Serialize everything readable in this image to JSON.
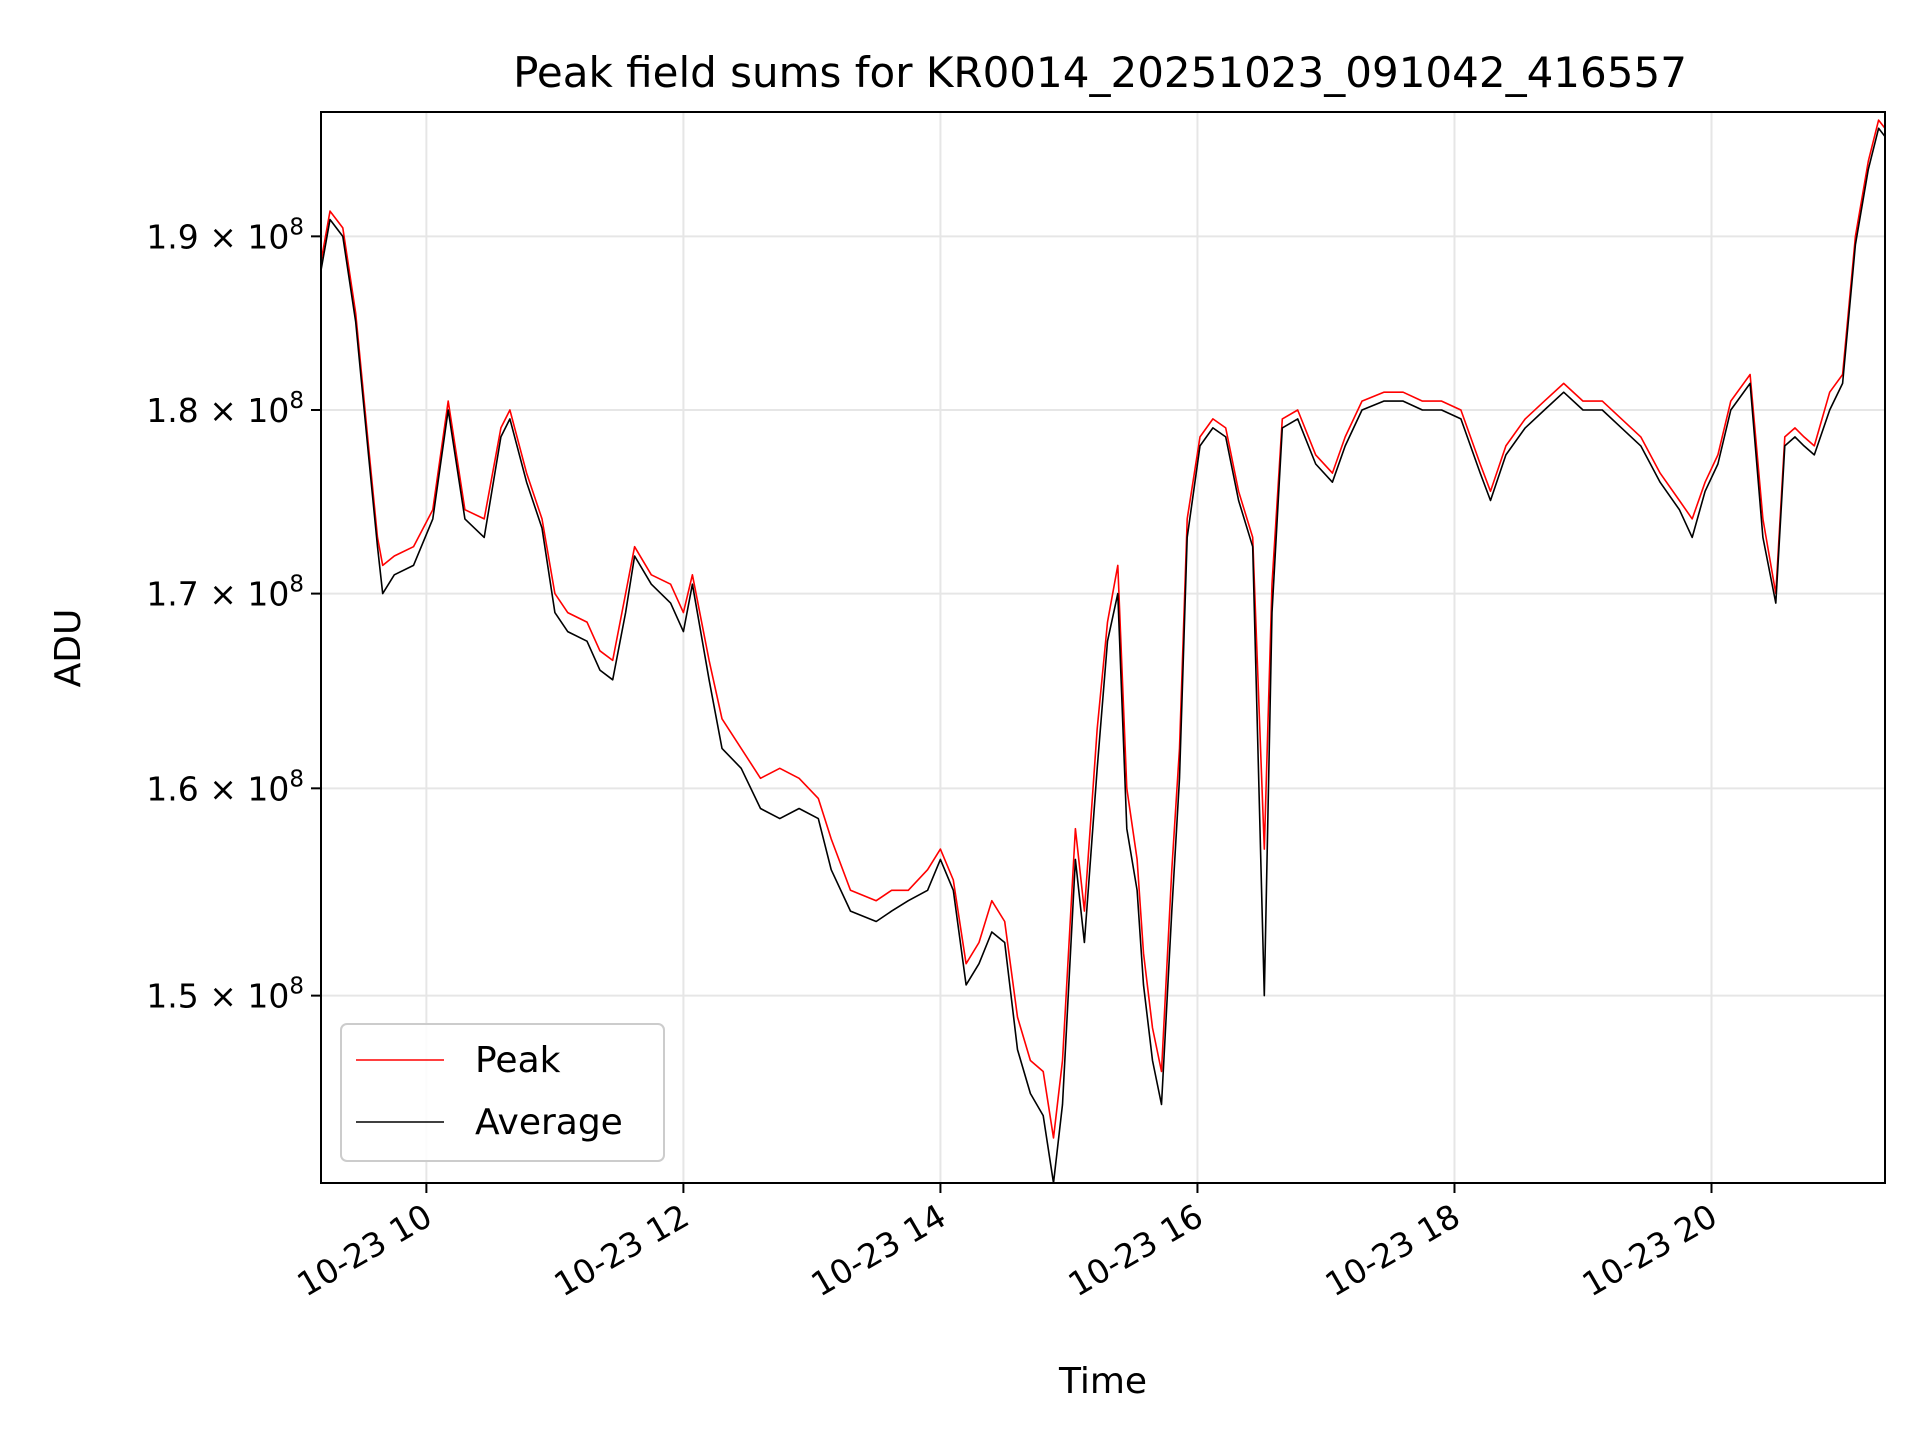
{
  "chart_data": {
    "type": "line",
    "title": "Peak field sums for KR0014_20251023_091042_416557",
    "xlabel": "Time",
    "ylabel": "ADU",
    "grid": true,
    "legend_location": "lower-left",
    "xlim_hours": [
      9.18,
      21.35
    ],
    "ylim": [
      141500000,
      197500000
    ],
    "y_scale": "log",
    "x_ticks": [
      {
        "value": 10,
        "label": "10-23 10"
      },
      {
        "value": 12,
        "label": "10-23 12"
      },
      {
        "value": 14,
        "label": "10-23 14"
      },
      {
        "value": 16,
        "label": "10-23 16"
      },
      {
        "value": 18,
        "label": "10-23 18"
      },
      {
        "value": 20,
        "label": "10-23 20"
      }
    ],
    "y_ticks": [
      {
        "value": 150000000,
        "mantissa": "1.5",
        "times": "×",
        "base": "10",
        "exp": "8"
      },
      {
        "value": 160000000,
        "mantissa": "1.6",
        "times": "×",
        "base": "10",
        "exp": "8"
      },
      {
        "value": 170000000,
        "mantissa": "1.7",
        "times": "×",
        "base": "10",
        "exp": "8"
      },
      {
        "value": 180000000,
        "mantissa": "1.8",
        "times": "×",
        "base": "10",
        "exp": "8"
      },
      {
        "value": 190000000,
        "mantissa": "1.9",
        "times": "×",
        "base": "10",
        "exp": "8"
      }
    ],
    "series": [
      {
        "name": "Peak",
        "color": "#ff0000",
        "x": [
          9.18,
          9.25,
          9.35,
          9.45,
          9.55,
          9.62,
          9.66,
          9.75,
          9.9,
          10.05,
          10.17,
          10.3,
          10.45,
          10.58,
          10.65,
          10.78,
          10.9,
          11.0,
          11.1,
          11.25,
          11.35,
          11.45,
          11.55,
          11.62,
          11.75,
          11.9,
          12.0,
          12.07,
          12.2,
          12.3,
          12.45,
          12.6,
          12.75,
          12.9,
          13.05,
          13.15,
          13.3,
          13.5,
          13.62,
          13.75,
          13.9,
          14.0,
          14.1,
          14.2,
          14.3,
          14.4,
          14.5,
          14.6,
          14.7,
          14.8,
          14.88,
          14.95,
          15.05,
          15.12,
          15.22,
          15.3,
          15.38,
          15.45,
          15.53,
          15.58,
          15.65,
          15.72,
          15.8,
          15.86,
          15.92,
          16.02,
          16.12,
          16.22,
          16.32,
          16.43,
          16.52,
          16.58,
          16.66,
          16.78,
          16.92,
          17.05,
          17.15,
          17.28,
          17.45,
          17.6,
          17.75,
          17.9,
          18.05,
          18.2,
          18.28,
          18.4,
          18.55,
          18.7,
          18.85,
          19.0,
          19.15,
          19.3,
          19.45,
          19.6,
          19.75,
          19.85,
          19.95,
          20.05,
          20.15,
          20.3,
          20.4,
          20.5,
          20.57,
          20.65,
          20.72,
          20.8,
          20.92,
          21.02,
          21.12,
          21.22,
          21.3,
          21.35
        ],
        "y": [
          188500000,
          191500000,
          190500000,
          185500000,
          178000000,
          173000000,
          171500000,
          172000000,
          172500000,
          174500000,
          180500000,
          174500000,
          174000000,
          179000000,
          180000000,
          176500000,
          174000000,
          170000000,
          169000000,
          168500000,
          167000000,
          166500000,
          170000000,
          172500000,
          171000000,
          170500000,
          169000000,
          171000000,
          166500000,
          163500000,
          162000000,
          160500000,
          161000000,
          160500000,
          159500000,
          157500000,
          155000000,
          154500000,
          155000000,
          155000000,
          156000000,
          157000000,
          155500000,
          151500000,
          152500000,
          154500000,
          153500000,
          149000000,
          147000000,
          146500000,
          143500000,
          147000000,
          158000000,
          154000000,
          163000000,
          168500000,
          171500000,
          160000000,
          156500000,
          152000000,
          148500000,
          146500000,
          156000000,
          162000000,
          174000000,
          178500000,
          179500000,
          179000000,
          175500000,
          173000000,
          157000000,
          170500000,
          179500000,
          180000000,
          177500000,
          176500000,
          178500000,
          180500000,
          181000000,
          181000000,
          180500000,
          180500000,
          180000000,
          177000000,
          175500000,
          178000000,
          179500000,
          180500000,
          181500000,
          180500000,
          180500000,
          179500000,
          178500000,
          176500000,
          175000000,
          174000000,
          176000000,
          177500000,
          180500000,
          182000000,
          174000000,
          170000000,
          178500000,
          179000000,
          178500000,
          178000000,
          181000000,
          182000000,
          190000000,
          194500000,
          197000000,
          196500000
        ]
      },
      {
        "name": "Average",
        "color": "#000000",
        "x": [
          9.18,
          9.25,
          9.35,
          9.45,
          9.55,
          9.62,
          9.66,
          9.75,
          9.9,
          10.05,
          10.17,
          10.3,
          10.45,
          10.58,
          10.65,
          10.78,
          10.9,
          11.0,
          11.1,
          11.25,
          11.35,
          11.45,
          11.55,
          11.62,
          11.75,
          11.9,
          12.0,
          12.07,
          12.2,
          12.3,
          12.45,
          12.6,
          12.75,
          12.9,
          13.05,
          13.15,
          13.3,
          13.5,
          13.62,
          13.75,
          13.9,
          14.0,
          14.1,
          14.2,
          14.3,
          14.4,
          14.5,
          14.6,
          14.7,
          14.8,
          14.88,
          14.95,
          15.05,
          15.12,
          15.22,
          15.3,
          15.38,
          15.45,
          15.53,
          15.58,
          15.65,
          15.72,
          15.8,
          15.86,
          15.92,
          16.02,
          16.12,
          16.22,
          16.32,
          16.43,
          16.52,
          16.58,
          16.66,
          16.78,
          16.92,
          17.05,
          17.15,
          17.28,
          17.45,
          17.6,
          17.75,
          17.9,
          18.05,
          18.2,
          18.28,
          18.4,
          18.55,
          18.7,
          18.85,
          19.0,
          19.15,
          19.3,
          19.45,
          19.6,
          19.75,
          19.85,
          19.95,
          20.05,
          20.15,
          20.3,
          20.4,
          20.5,
          20.57,
          20.65,
          20.72,
          20.8,
          20.92,
          21.02,
          21.12,
          21.22,
          21.3,
          21.35
        ],
        "y": [
          188000000,
          191000000,
          190000000,
          185000000,
          177500000,
          172500000,
          170000000,
          171000000,
          171500000,
          174000000,
          180000000,
          174000000,
          173000000,
          178500000,
          179500000,
          176000000,
          173500000,
          169000000,
          168000000,
          167500000,
          166000000,
          165500000,
          169000000,
          172000000,
          170500000,
          169500000,
          168000000,
          170500000,
          165500000,
          162000000,
          161000000,
          159000000,
          158500000,
          159000000,
          158500000,
          156000000,
          154000000,
          153500000,
          154000000,
          154500000,
          155000000,
          156500000,
          155000000,
          150500000,
          151500000,
          153000000,
          152500000,
          147500000,
          145500000,
          144500000,
          141500000,
          145000000,
          156500000,
          152500000,
          161000000,
          167500000,
          170000000,
          158000000,
          155000000,
          150500000,
          147000000,
          145000000,
          154000000,
          160500000,
          173000000,
          178000000,
          179000000,
          178500000,
          175000000,
          172500000,
          150000000,
          169000000,
          179000000,
          179500000,
          177000000,
          176000000,
          178000000,
          180000000,
          180500000,
          180500000,
          180000000,
          180000000,
          179500000,
          176500000,
          175000000,
          177500000,
          179000000,
          180000000,
          181000000,
          180000000,
          180000000,
          179000000,
          178000000,
          176000000,
          174500000,
          173000000,
          175500000,
          177000000,
          180000000,
          181500000,
          173000000,
          169500000,
          178000000,
          178500000,
          178000000,
          177500000,
          180000000,
          181500000,
          189500000,
          194000000,
          196500000,
          196000000
        ]
      }
    ]
  }
}
